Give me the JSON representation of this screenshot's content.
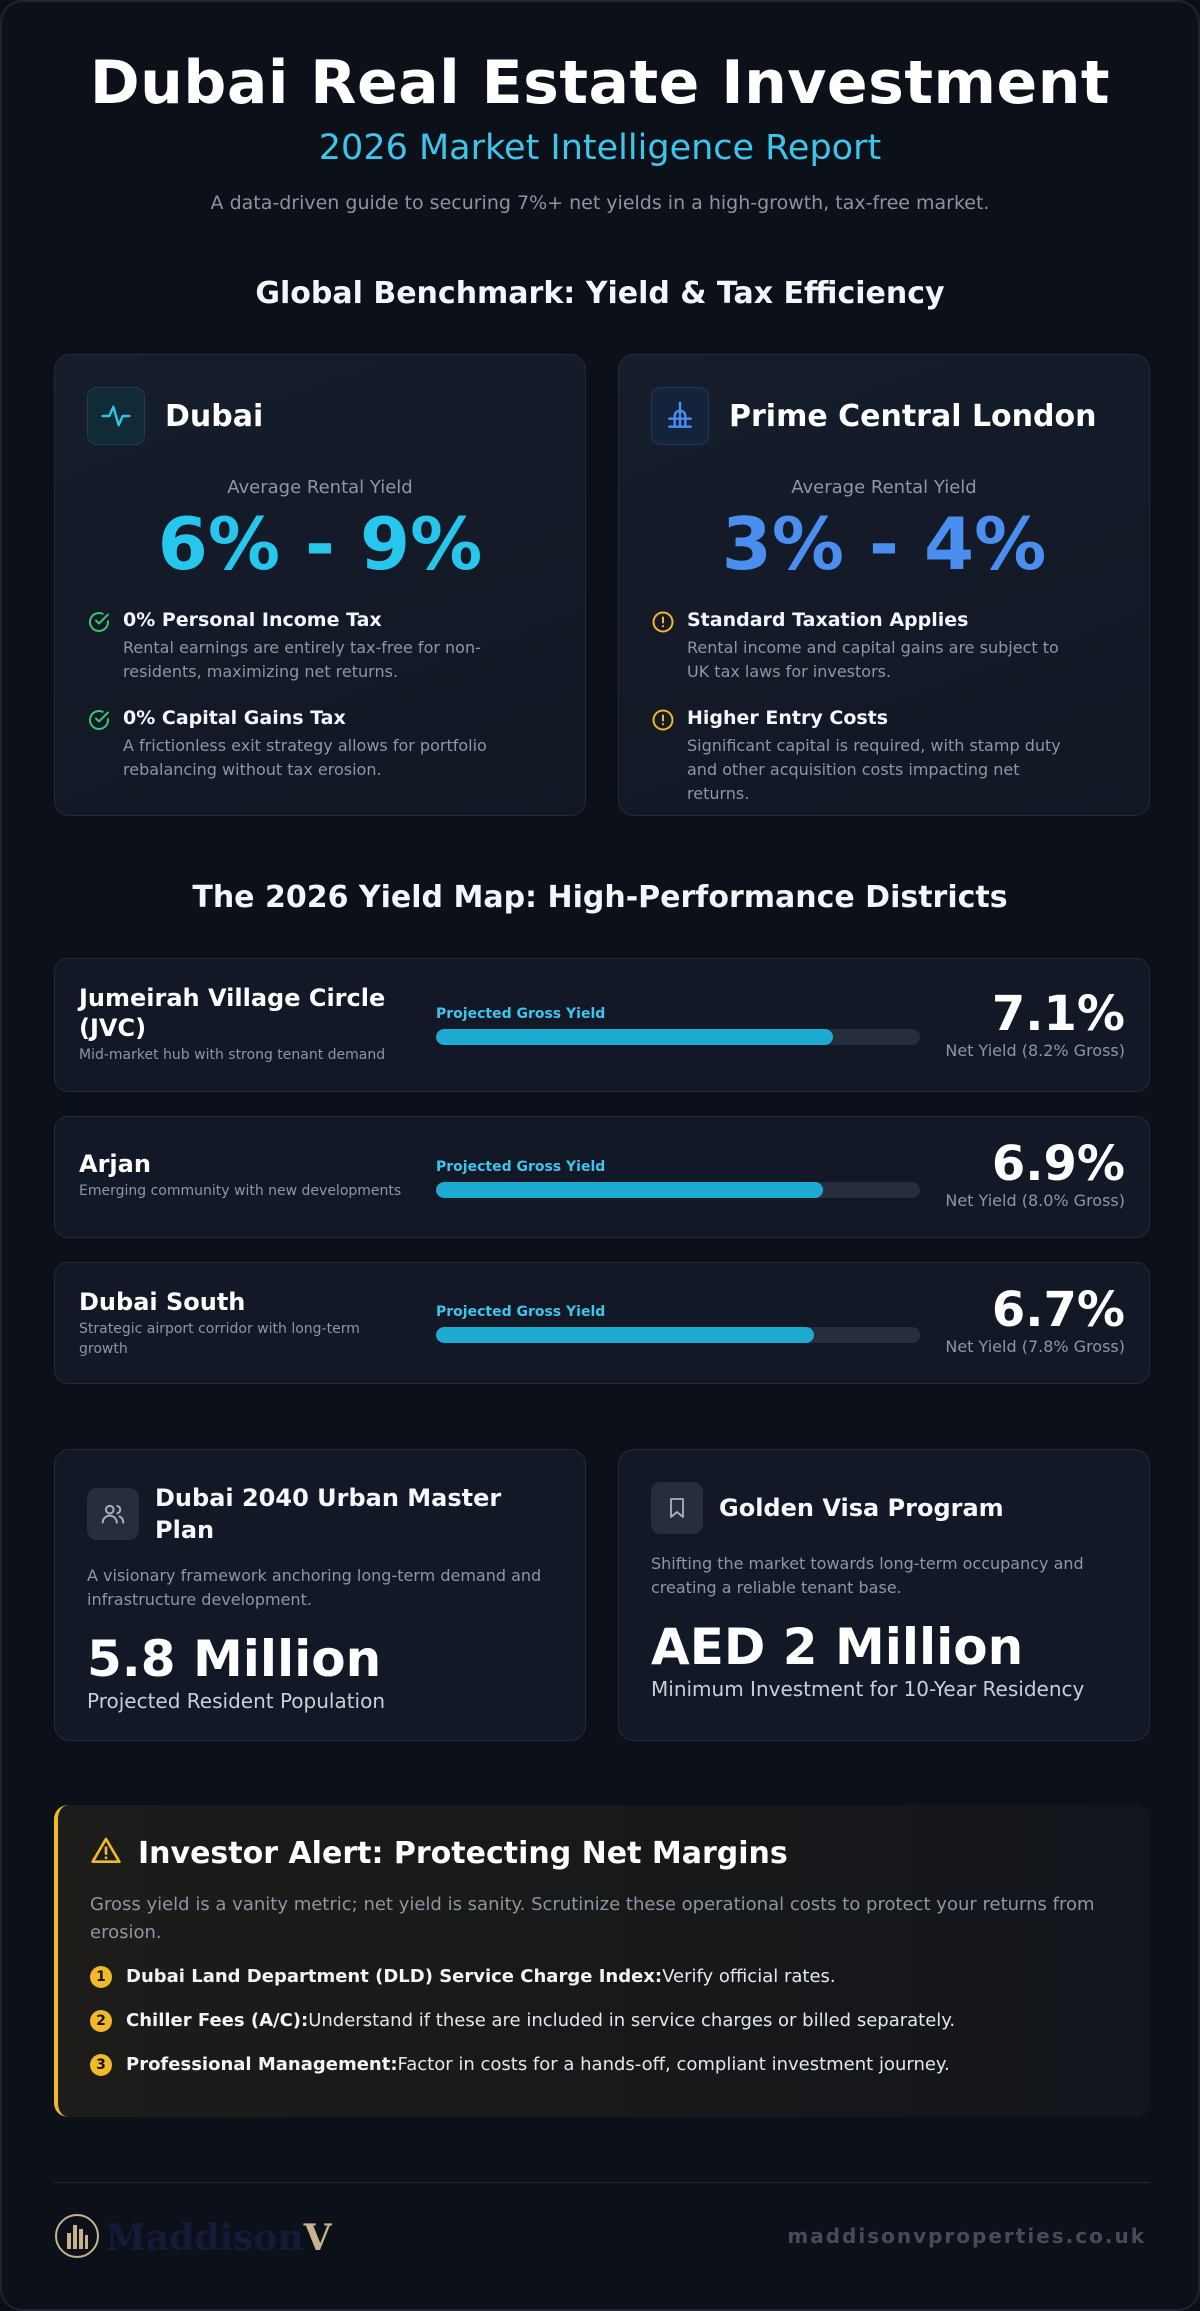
{
  "header": {
    "title": "Dubai Real Estate Investment",
    "subtitle": "2026 Market Intelligence Report",
    "description": "A data-driven guide to securing 7%+ net yields in a high-growth, tax-free market."
  },
  "benchmark": {
    "title": "Global Benchmark: Yield & Tax Efficiency",
    "cards": [
      {
        "name": "Dubai",
        "icon": "activity-icon",
        "yield_label": "Average Rental Yield",
        "yield_range": "6% - 9%",
        "accent": "#27c6ec",
        "features": [
          {
            "icon": "check-circle-icon",
            "title": "0% Personal Income Tax",
            "text": "Rental earnings are entirely tax-free for non-residents, maximizing net returns."
          },
          {
            "icon": "check-circle-icon",
            "title": "0% Capital Gains Tax",
            "text": "A frictionless exit strategy allows for portfolio rebalancing without tax erosion."
          }
        ]
      },
      {
        "name": "Prime Central London",
        "icon": "landmark-icon",
        "yield_label": "Average Rental Yield",
        "yield_range": "3% - 4%",
        "accent": "#4a8ef0",
        "features": [
          {
            "icon": "alert-circle-icon",
            "title": "Standard Taxation Applies",
            "text": "Rental income and capital gains are subject to UK tax laws for investors."
          },
          {
            "icon": "alert-circle-icon",
            "title": "Higher Entry Costs",
            "text": "Significant capital is required, with stamp duty and other acquisition costs impacting net returns."
          }
        ]
      }
    ]
  },
  "yield_map": {
    "title": "The 2026 Yield Map: High-Performance Districts",
    "bar_label": "Projected Gross Yield",
    "districts": [
      {
        "name": "Jumeirah Village Circle (JVC)",
        "desc": "Mid-market hub with strong tenant demand",
        "net": "7.1%",
        "gross_text": "Net Yield (8.2% Gross)",
        "gross_fill": 0.82
      },
      {
        "name": "Arjan",
        "desc": "Emerging community with new developments",
        "net": "6.9%",
        "gross_text": "Net Yield (8.0% Gross)",
        "gross_fill": 0.8
      },
      {
        "name": "Dubai South",
        "desc": "Strategic airport corridor with long-term growth",
        "net": "6.7%",
        "gross_text": "Net Yield (7.8% Gross)",
        "gross_fill": 0.78
      }
    ]
  },
  "info_cards": [
    {
      "icon": "users-icon",
      "title": "Dubai 2040 Urban Master Plan",
      "desc": "A visionary framework anchoring long-term demand and infrastructure development.",
      "big": "5.8 Million",
      "caption": "Projected Resident Population"
    },
    {
      "icon": "bookmark-icon",
      "title": "Golden Visa Program",
      "desc": "Shifting the market towards long-term occupancy and creating a reliable tenant base.",
      "big": "AED 2 Million",
      "caption": "Minimum Investment for 10-Year Residency"
    }
  ],
  "alert": {
    "title": "Investor Alert: Protecting Net Margins",
    "desc": "Gross yield is a vanity metric; net yield is sanity. Scrutinize these operational costs to protect your returns from erosion.",
    "items": [
      {
        "num": "1",
        "bold": "Dubai Land Department (DLD) Service Charge Index:",
        "text": "Verify official rates."
      },
      {
        "num": "2",
        "bold": "Chiller Fees (A/C):",
        "text": "Understand if these are included in service charges or billed separately."
      },
      {
        "num": "3",
        "bold": "Professional Management:",
        "text": "Factor in costs for a hands-off, compliant investment journey."
      }
    ]
  },
  "footer": {
    "logo_text": "Maddison",
    "logo_v": "V",
    "site": "maddisonvproperties.co.uk"
  }
}
